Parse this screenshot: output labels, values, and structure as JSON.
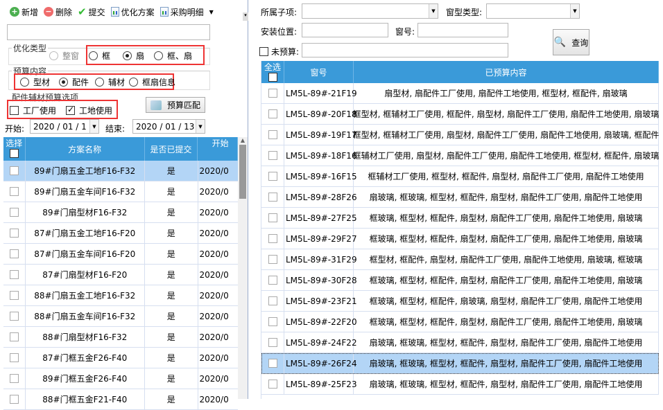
{
  "toolbar": {
    "items": [
      {
        "label": "新增",
        "icon": "add-icon"
      },
      {
        "label": "删除",
        "icon": "delete-icon"
      },
      {
        "label": "提交",
        "icon": "check-icon"
      },
      {
        "label": "优化方案",
        "icon": "report-icon"
      },
      {
        "label": "采购明细",
        "icon": "report-icon"
      }
    ]
  },
  "optimize_type": {
    "title": "优化类型",
    "options": [
      "整窗",
      "框",
      "扇",
      "框、扇"
    ],
    "selected": "扇"
  },
  "budget_content": {
    "title": "预算内容",
    "options": [
      "型材",
      "配件",
      "辅材",
      "框扇信息"
    ],
    "selected": "配件"
  },
  "budget_options": {
    "title": "配件辅材预算选项",
    "factory": "工厂使用",
    "factory_checked": false,
    "site": "工地使用",
    "site_checked": true,
    "match_button": "预算匹配"
  },
  "dates": {
    "start_label": "开始:",
    "start": "2020 / 01 / 1",
    "end_label": "结束:",
    "end": "2020 / 01 / 13"
  },
  "left_table": {
    "headers": [
      "选择",
      "方案名称",
      "是否已提交",
      "开始"
    ],
    "rows": [
      [
        "89#门扇五金工地F16-F32",
        "是",
        "2020/0"
      ],
      [
        "89#门扇五金车间F16-F32",
        "是",
        "2020/0"
      ],
      [
        "89#门扇型材F16-F32",
        "是",
        "2020/0"
      ],
      [
        "87#门扇五金工地F16-F20",
        "是",
        "2020/0"
      ],
      [
        "87#门扇五金车间F16-F20",
        "是",
        "2020/0"
      ],
      [
        "87#门扇型材F16-F20",
        "是",
        "2020/0"
      ],
      [
        "88#门扇五金工地F16-F32",
        "是",
        "2020/0"
      ],
      [
        "88#门扇五金车间F16-F32",
        "是",
        "2020/0"
      ],
      [
        "88#门扇型材F16-F32",
        "是",
        "2020/0"
      ],
      [
        "87#门框五金F26-F40",
        "是",
        "2020/0"
      ],
      [
        "89#门框五金F26-F40",
        "是",
        "2020/0"
      ],
      [
        "88#门框五金F21-F40",
        "是",
        "2020/0"
      ]
    ],
    "selected_index": 0
  },
  "filters": {
    "subitem_label": "所属子项:",
    "subitem_value": "",
    "window_type_label": "窗型类型:",
    "window_type_value": "",
    "location_label": "安装位置:",
    "location_value": "",
    "window_no_label": "窗号:",
    "window_no_value": "",
    "unbudgeted_label": "未预算:",
    "unbudgeted_value": "",
    "unbudgeted_checked": false,
    "query_button": "查询"
  },
  "right_table": {
    "headers": [
      "全选",
      "窗号",
      "已预算内容"
    ],
    "rows": [
      [
        "LM5L-89#-21F19",
        "扇型材, 扇配件工厂使用, 扇配件工地使用, 框型材, 框配件, 扇玻璃"
      ],
      [
        "LM5L-89#-20F18",
        "框型材, 框辅材工厂使用, 框配件, 扇型材, 扇配件工厂使用, 扇配件工地使用, 扇玻璃"
      ],
      [
        "LM5L-89#-19F17",
        "框型材, 框辅材工厂使用, 扇型材, 扇配件工厂使用, 扇配件工地使用, 扇玻璃, 框配件"
      ],
      [
        "LM5L-89#-18F16",
        "框辅材工厂使用, 扇型材, 扇配件工厂使用, 扇配件工地使用, 框型材, 框配件, 扇玻璃"
      ],
      [
        "LM5L-89#-16F15",
        "框辅材工厂使用, 框型材, 框配件, 扇型材, 扇配件工厂使用, 扇配件工地使用"
      ],
      [
        "LM5L-89#-28F26",
        "扇玻璃, 框玻璃, 框型材, 框配件, 扇型材, 扇配件工厂使用, 扇配件工地使用"
      ],
      [
        "LM5L-89#-27F25",
        "框玻璃, 框型材, 框配件, 扇型材, 扇配件工厂使用, 扇配件工地使用, 扇玻璃"
      ],
      [
        "LM5L-89#-29F27",
        "框玻璃, 框型材, 框配件, 扇型材, 扇配件工厂使用, 扇配件工地使用, 扇玻璃"
      ],
      [
        "LM5L-89#-31F29",
        "框型材, 框配件, 扇型材, 扇配件工厂使用, 扇配件工地使用, 扇玻璃, 框玻璃"
      ],
      [
        "LM5L-89#-30F28",
        "框玻璃, 框型材, 框配件, 扇型材, 扇配件工厂使用, 扇配件工地使用, 扇玻璃"
      ],
      [
        "LM5L-89#-23F21",
        "框玻璃, 框型材, 框配件, 扇玻璃, 扇型材, 扇配件工厂使用, 扇配件工地使用"
      ],
      [
        "LM5L-89#-22F20",
        "框玻璃, 框型材, 框配件, 扇型材, 扇配件工厂使用, 扇配件工地使用, 扇玻璃"
      ],
      [
        "LM5L-89#-24F22",
        "扇玻璃, 框玻璃, 框型材, 框配件, 扇型材, 扇配件工厂使用, 扇配件工地使用"
      ],
      [
        "LM5L-89#-26F24",
        "扇玻璃, 框玻璃, 框型材, 框配件, 扇型材, 扇配件工厂使用, 扇配件工地使用"
      ],
      [
        "LM5L-89#-25F23",
        "扇玻璃, 框玻璃, 框型材, 框配件, 扇型材, 扇配件工厂使用, 扇配件工地使用"
      ]
    ],
    "selected_index": 13
  },
  "colors": {
    "header": "#3a9ad9",
    "selected_row": "#b3d5f6",
    "highlight_box": "#e33333"
  }
}
